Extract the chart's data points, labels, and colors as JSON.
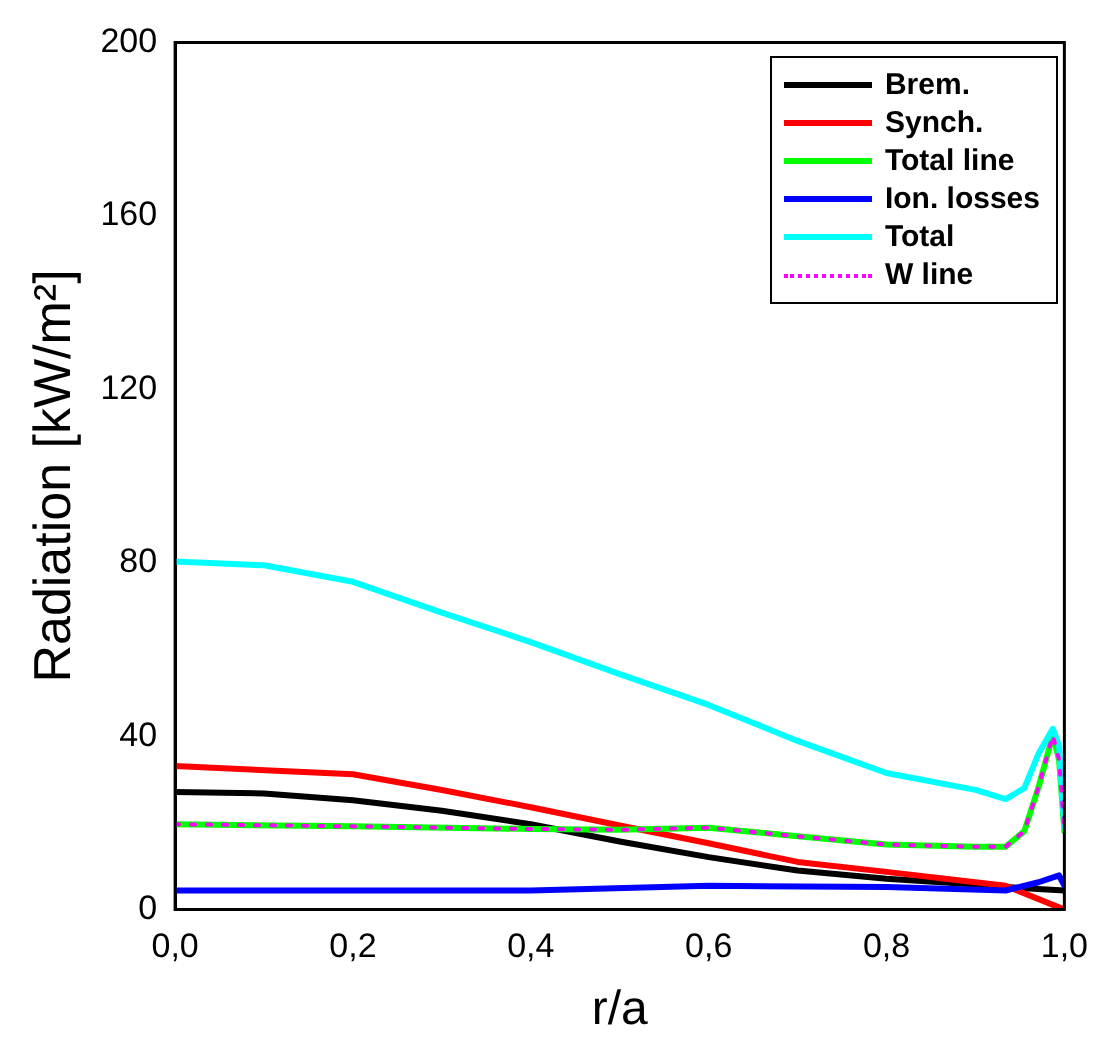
{
  "chart_data": {
    "type": "line",
    "xlabel": "r/a",
    "ylabel": "Radiation [kW/m²]",
    "xlim": [
      0,
      1
    ],
    "xticks": [
      {
        "value": 0,
        "label": "0,0"
      },
      {
        "value": 0.2,
        "label": "0,2"
      },
      {
        "value": 0.4,
        "label": "0,4"
      },
      {
        "value": 0.6,
        "label": "0,6"
      },
      {
        "value": 0.8,
        "label": "0,8"
      },
      {
        "value": 1,
        "label": "1,0"
      }
    ],
    "ylim": [
      0,
      200
    ],
    "yticks": [
      0,
      40,
      80,
      120,
      160,
      200
    ],
    "grid": false,
    "legend": "top right",
    "marker": "none",
    "series": [
      {
        "name": "Brem.",
        "color": "#000000",
        "x": [
          0,
          0.1,
          0.2,
          0.3,
          0.4,
          0.5,
          0.6,
          0.7,
          0.8,
          0.9,
          0.934,
          1.0
        ],
        "values": [
          27.1,
          26.8,
          25.2,
          22.8,
          19.7,
          15.7,
          12.1,
          9,
          7.1,
          5.8,
          5.2,
          4.4
        ]
      },
      {
        "name": "Synch.",
        "color": "#ff0000",
        "x": [
          0,
          0.2,
          0.3,
          0.4,
          0.5,
          0.6,
          0.7,
          0.8,
          0.9,
          0.934,
          1.0
        ],
        "values": [
          33.1,
          31.2,
          27.6,
          23.6,
          19.4,
          15.3,
          11,
          8.7,
          6.3,
          5.5,
          0
        ]
      },
      {
        "name": "Total line",
        "color": "#00ff00",
        "x": [
          0,
          0.2,
          0.4,
          0.5,
          0.6,
          0.7,
          0.8,
          0.9,
          0.934,
          0.955,
          0.971,
          0.987,
          0.994,
          1.0
        ],
        "values": [
          19.7,
          19.2,
          18.6,
          18.4,
          18.9,
          16.9,
          15,
          14.5,
          14.5,
          18.1,
          28.3,
          40.2,
          34.6,
          18.1
        ]
      },
      {
        "name": "Ion. losses",
        "color": "#0000ff",
        "x": [
          0,
          0.4,
          0.6,
          0.8,
          0.934,
          0.971,
          0.994,
          1.0
        ],
        "values": [
          4.4,
          4.4,
          5.5,
          5.2,
          4.4,
          6.3,
          7.9,
          5.5
        ]
      },
      {
        "name": "Total",
        "color": "#00ffff",
        "x": [
          0,
          0.1,
          0.2,
          0.3,
          0.4,
          0.5,
          0.6,
          0.7,
          0.8,
          0.9,
          0.934,
          0.955,
          0.971,
          0.987,
          0.994,
          1.0
        ],
        "values": [
          80.3,
          79.4,
          75.6,
          68.5,
          61.7,
          54.3,
          47.2,
          38.9,
          31.5,
          27.6,
          25.5,
          28,
          36,
          41.7,
          37.8,
          18.9
        ]
      },
      {
        "name": "W line",
        "color": "#ff00ff",
        "line_style": "dotted",
        "x": [
          0,
          0.2,
          0.4,
          0.5,
          0.6,
          0.7,
          0.8,
          0.9,
          0.934,
          0.955,
          0.971,
          0.987,
          0.994,
          1.0
        ],
        "values": [
          19.7,
          19.2,
          18.6,
          18.4,
          18.9,
          16.9,
          15,
          14.5,
          14.5,
          18.1,
          28.3,
          40.2,
          34.6,
          18.1
        ]
      }
    ]
  }
}
